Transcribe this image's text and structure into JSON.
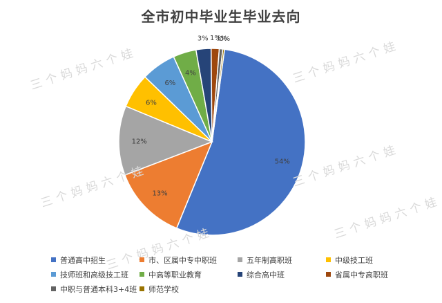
{
  "watermark": "三个妈妈六个娃",
  "chart_data": {
    "type": "pie",
    "title": "全市初中毕业生毕业去向",
    "legend_position": "bottom",
    "slices": [
      {
        "name": "普通高中招生",
        "value": 54,
        "label": "54%",
        "color": "#4472C4"
      },
      {
        "name": "市、区属中专中职班",
        "value": 13,
        "label": "13%",
        "color": "#ED7D31"
      },
      {
        "name": "五年制高职班",
        "value": 12,
        "label": "12%",
        "color": "#A5A5A5"
      },
      {
        "name": "中级技工班",
        "value": 6,
        "label": "6%",
        "color": "#FFC000"
      },
      {
        "name": "技师班和高级技工班",
        "value": 6,
        "label": "6%",
        "color": "#5B9BD5"
      },
      {
        "name": "中高等职业教育",
        "value": 4,
        "label": "4%",
        "color": "#70AD47"
      },
      {
        "name": "综合高中班",
        "value": 2.6,
        "label": "3%",
        "color": "#264478"
      },
      {
        "name": "省属中专高职班",
        "value": 1.4,
        "label": "1%",
        "color": "#9E480E"
      },
      {
        "name": "中职与普通本科3+4班",
        "value": 0.6,
        "label": "1%",
        "color": "#636363"
      },
      {
        "name": "师范学校",
        "value": 0.3,
        "label": "0%",
        "color": "#997300"
      }
    ]
  }
}
